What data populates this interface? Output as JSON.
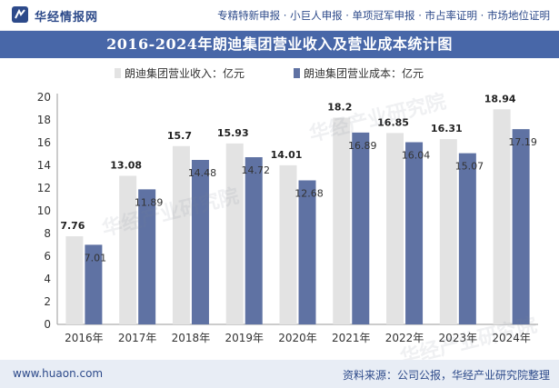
{
  "header": {
    "logo_text": "华经情报网",
    "slogan": "专精特新申报 · 小巨人申报 · 单项冠军申报 · 市占率证明 · 市场地位证明"
  },
  "watermark_text": "华经产业研究院",
  "footer": {
    "website": "www.huaon.com",
    "source": "资料来源：公司公报，华经产业研究院整理"
  },
  "colors": {
    "title_bg": "#4867a8",
    "revenue": "#e3e3e3",
    "cost": "#5f72a3"
  },
  "chart_data": {
    "type": "bar",
    "title": "2016-2024年朗迪集团营业收入及营业成本统计图",
    "categories": [
      "2016年",
      "2017年",
      "2018年",
      "2019年",
      "2020年",
      "2021年",
      "2022年",
      "2023年",
      "2024年"
    ],
    "series": [
      {
        "name": "朗迪集团营业收入：亿元",
        "values": [
          7.76,
          13.08,
          15.7,
          15.93,
          14.01,
          18.2,
          16.85,
          16.31,
          18.94
        ]
      },
      {
        "name": "朗迪集团营业成本：亿元",
        "values": [
          7.01,
          11.89,
          14.48,
          14.72,
          12.68,
          16.89,
          16.04,
          15.07,
          17.19
        ]
      }
    ],
    "value_labels": [
      [
        "7.76",
        "13.08",
        "15.7",
        "15.93",
        "14.01",
        "18.2",
        "16.85",
        "16.31",
        "18.94"
      ],
      [
        "7.01",
        "11.89",
        "14.48",
        "14.72",
        "12.68",
        "16.89",
        "16.04",
        "15.07",
        "17.19"
      ]
    ],
    "y_ticks": [
      "0",
      "2",
      "4",
      "6",
      "8",
      "10",
      "12",
      "14",
      "16",
      "18",
      "20"
    ],
    "ylim": [
      0,
      20
    ],
    "grid": false,
    "legend_position": "top"
  }
}
